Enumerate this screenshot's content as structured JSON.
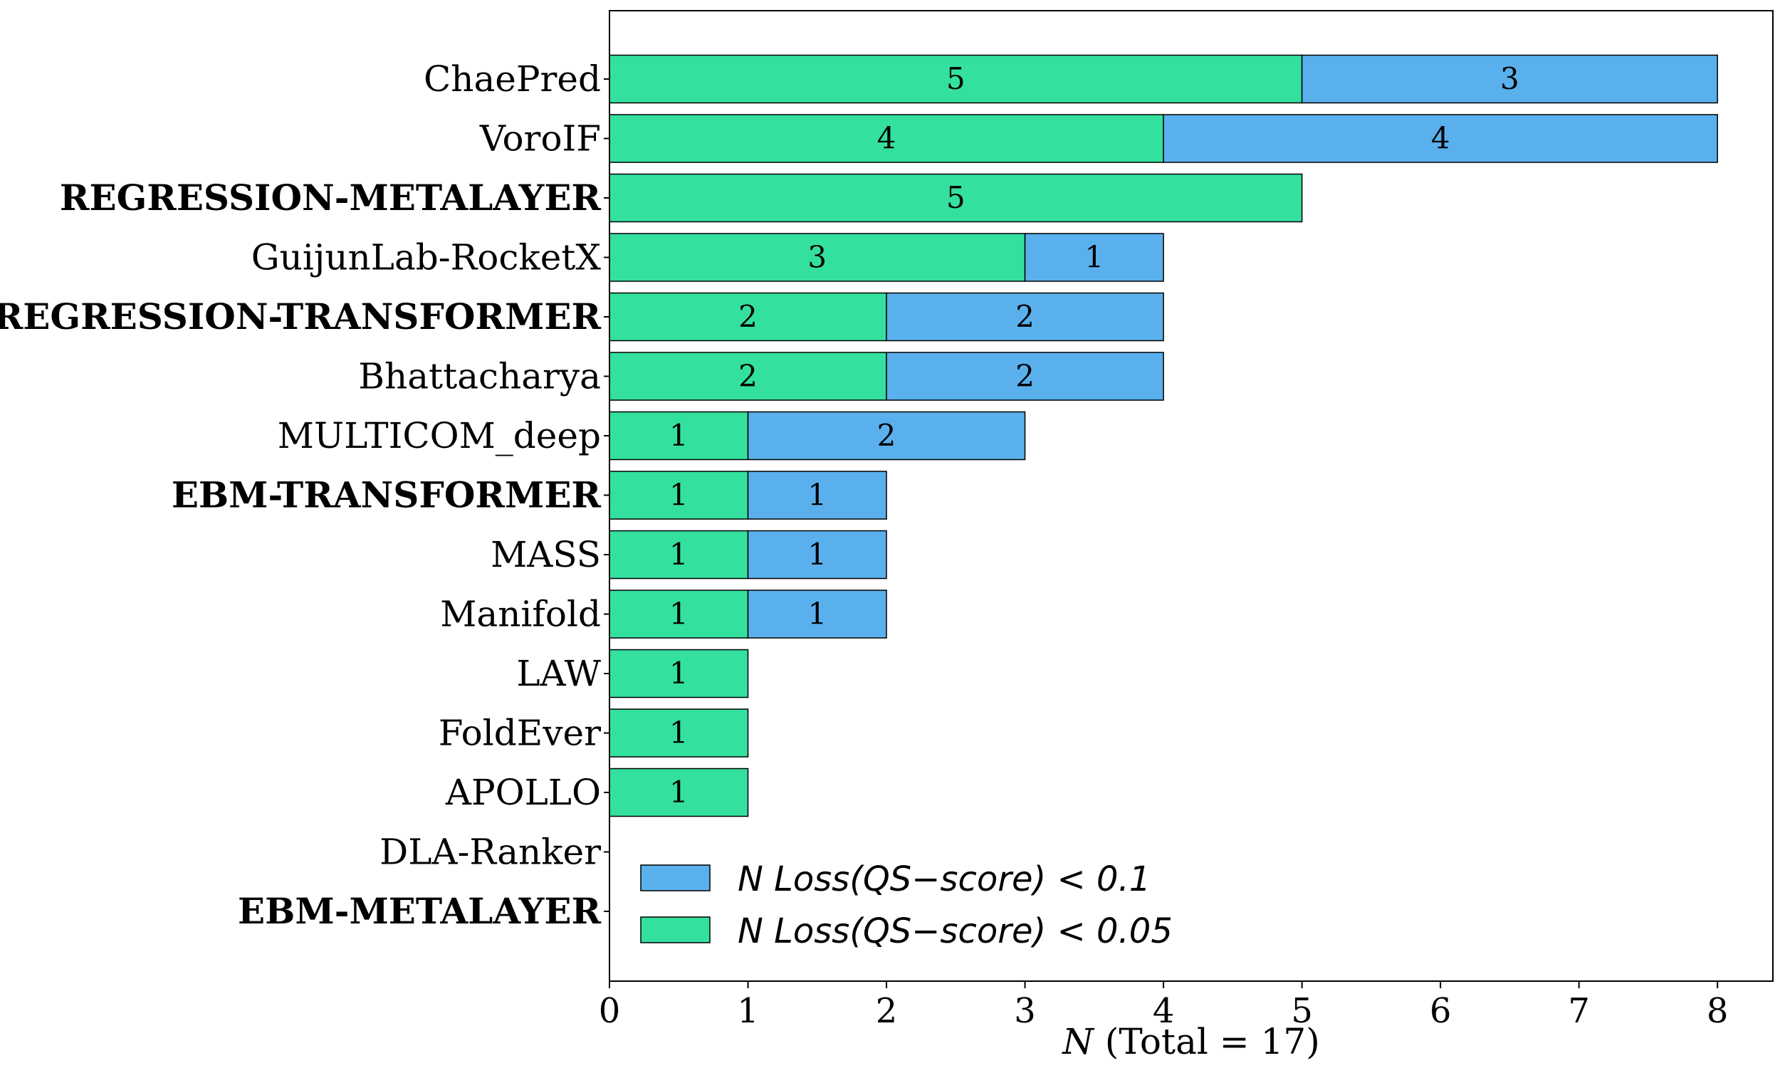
{
  "chart_data": {
    "type": "bar",
    "orientation": "horizontal",
    "stacked": true,
    "categories": [
      "ChaePred",
      "VoroIF",
      "REGRESSION-METALAYER",
      "GuijunLab-RocketX",
      "REGRESSION-TRANSFORMER",
      "Bhattacharya",
      "MULTICOM_deep",
      "EBM-TRANSFORMER",
      "MASS",
      "Manifold",
      "LAW",
      "FoldEver",
      "APOLLO",
      "DLA-Ranker",
      "EBM-METALAYER"
    ],
    "bold_categories": [
      "REGRESSION-METALAYER",
      "REGRESSION-TRANSFORMER",
      "EBM-TRANSFORMER",
      "EBM-METALAYER"
    ],
    "series": [
      {
        "name": "N Loss(QS−score) < 0.05",
        "color": "#34e09e",
        "values": [
          5,
          4,
          5,
          3,
          2,
          2,
          1,
          1,
          1,
          1,
          1,
          1,
          1,
          0,
          0
        ]
      },
      {
        "name": "N Loss(QS−score) < 0.1",
        "color": "#5ab0ec",
        "values": [
          3,
          4,
          0,
          1,
          2,
          2,
          2,
          1,
          1,
          1,
          0,
          0,
          0,
          0,
          0
        ]
      }
    ],
    "xlabel_var": "N",
    "xlabel_rest": " (Total = 17)",
    "xlim": [
      0,
      8.4
    ],
    "xticks": [
      0,
      1,
      2,
      3,
      4,
      5,
      6,
      7,
      8
    ],
    "grid": false,
    "legend": {
      "placement": "lower-left",
      "entries": [
        {
          "prefix": "N Loss(QS−score) < 0.1",
          "color": "#5ab0ec"
        },
        {
          "prefix": "N Loss(QS−score) < 0.05",
          "color": "#34e09e"
        }
      ]
    }
  }
}
